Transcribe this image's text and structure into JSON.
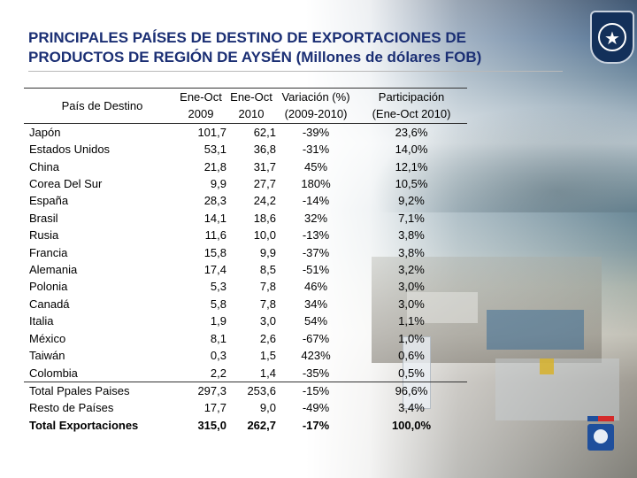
{
  "title_line1": "PRINCIPALES PAÍSES DE DESTINO DE EXPORTACIONES DE",
  "title_line2": "PRODUCTOS DE REGIÓN DE AYSÉN (Millones de dólares FOB)",
  "header": {
    "country": "País de Destino",
    "v2009_line1": "Ene-Oct",
    "v2009_line2": "2009",
    "v2010_line1": "Ene-Oct",
    "v2010_line2": "2010",
    "var_line1": "Variación (%)",
    "var_line2": "(2009-2010)",
    "part_line1": "Participación",
    "part_line2": "(Ene-Oct 2010)"
  },
  "rows": [
    {
      "country": "Japón",
      "v2009": "101,7",
      "v2010": "62,1",
      "var": "-39%",
      "part": "23,6%"
    },
    {
      "country": "Estados Unidos",
      "v2009": "53,1",
      "v2010": "36,8",
      "var": "-31%",
      "part": "14,0%"
    },
    {
      "country": "China",
      "v2009": "21,8",
      "v2010": "31,7",
      "var": "45%",
      "part": "12,1%"
    },
    {
      "country": "Corea Del Sur",
      "v2009": "9,9",
      "v2010": "27,7",
      "var": "180%",
      "part": "10,5%"
    },
    {
      "country": "España",
      "v2009": "28,3",
      "v2010": "24,2",
      "var": "-14%",
      "part": "9,2%"
    },
    {
      "country": "Brasil",
      "v2009": "14,1",
      "v2010": "18,6",
      "var": "32%",
      "part": "7,1%"
    },
    {
      "country": "Rusia",
      "v2009": "11,6",
      "v2010": "10,0",
      "var": "-13%",
      "part": "3,8%"
    },
    {
      "country": "Francia",
      "v2009": "15,8",
      "v2010": "9,9",
      "var": "-37%",
      "part": "3,8%"
    },
    {
      "country": "Alemania",
      "v2009": "17,4",
      "v2010": "8,5",
      "var": "-51%",
      "part": "3,2%"
    },
    {
      "country": "Polonia",
      "v2009": "5,3",
      "v2010": "7,8",
      "var": "46%",
      "part": "3,0%"
    },
    {
      "country": "Canadá",
      "v2009": "5,8",
      "v2010": "7,8",
      "var": "34%",
      "part": "3,0%"
    },
    {
      "country": "Italia",
      "v2009": "1,9",
      "v2010": "3,0",
      "var": "54%",
      "part": "1,1%"
    },
    {
      "country": "México",
      "v2009": "8,1",
      "v2010": "2,6",
      "var": "-67%",
      "part": "1,0%"
    },
    {
      "country": "Taiwán",
      "v2009": "0,3",
      "v2010": "1,5",
      "var": "423%",
      "part": "0,6%"
    },
    {
      "country": "Colombia",
      "v2009": "2,2",
      "v2010": "1,4",
      "var": "-35%",
      "part": "0,5%"
    }
  ],
  "subtotal": {
    "country": "Total Ppales Paises",
    "v2009": "297,3",
    "v2010": "253,6",
    "var": "-15%",
    "part": "96,6%"
  },
  "rest": {
    "country": "Resto de Países",
    "v2009": "17,7",
    "v2010": "9,0",
    "var": "-49%",
    "part": "3,4%"
  },
  "total": {
    "country": "Total Exportaciones",
    "v2009": "315,0",
    "v2010": "262,7",
    "var": "-17%",
    "part": "100,0%"
  },
  "logos": {
    "top_right": "aduana-badge-icon",
    "bottom_right": "gobierno-de-chile-logo",
    "badge_color": "#13305a",
    "title_color": "#1b2f74"
  }
}
